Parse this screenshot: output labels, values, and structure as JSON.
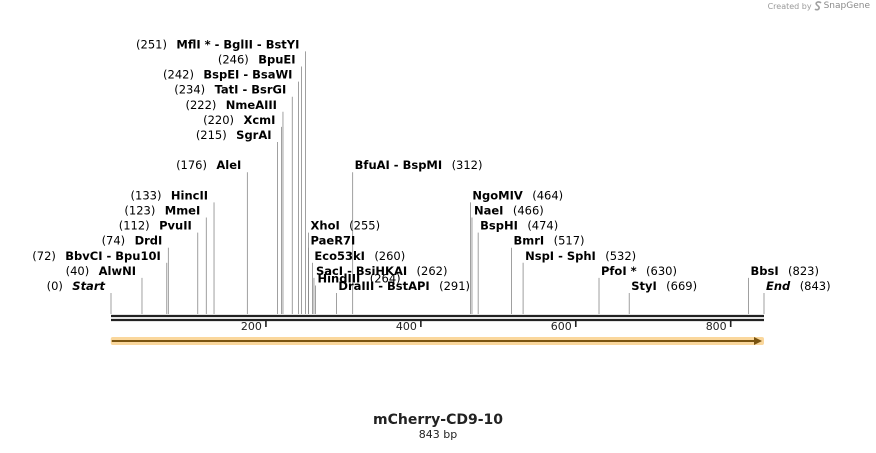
{
  "credit": {
    "prefix": "Created by",
    "brand": "SnapGene",
    "logo_icon": "snapgene-logo-icon"
  },
  "map": {
    "name": "mCherry-CD9-10",
    "length_label": "843 bp",
    "length": 843,
    "ruler_ticks": [
      200,
      400,
      600,
      800
    ],
    "feature_arrow": {
      "start": 1,
      "end": 843,
      "color": "#f5a623",
      "direction": "forward"
    },
    "labels": [
      {
        "id": "start",
        "pos": 0,
        "name": "Start",
        "num": "(0)",
        "style": "italic",
        "side": "left",
        "row": 0
      },
      {
        "id": "alwni",
        "pos": 40,
        "name": "AlwNI",
        "num": "(40)",
        "side": "left",
        "row": 1
      },
      {
        "id": "bbvci",
        "pos": 72,
        "name": "BbvCI - Bpu10I",
        "num": "(72)",
        "side": "left",
        "row": 2
      },
      {
        "id": "drdi",
        "pos": 74,
        "name": "DrdI",
        "num": "(74)",
        "side": "left",
        "row": 3
      },
      {
        "id": "pvuii",
        "pos": 112,
        "name": "PvuII",
        "num": "(112)",
        "side": "left",
        "row": 4
      },
      {
        "id": "mmei",
        "pos": 123,
        "name": "MmeI",
        "num": "(123)",
        "side": "left",
        "row": 5
      },
      {
        "id": "hincii",
        "pos": 133,
        "name": "HincII",
        "num": "(133)",
        "side": "left",
        "row": 6
      },
      {
        "id": "alei",
        "pos": 176,
        "name": "AleI",
        "num": "(176)",
        "side": "left",
        "row": 8
      },
      {
        "id": "sgrai",
        "pos": 215,
        "name": "SgrAI",
        "num": "(215)",
        "side": "left",
        "row": 10
      },
      {
        "id": "xcmi",
        "pos": 220,
        "name": "XcmI",
        "num": "(220)",
        "side": "left",
        "row": 11
      },
      {
        "id": "nmeaiii",
        "pos": 222,
        "name": "NmeAIII",
        "num": "(222)",
        "side": "left",
        "row": 12
      },
      {
        "id": "tati",
        "pos": 234,
        "name": "TatI - BsrGI",
        "num": "(234)",
        "side": "left",
        "row": 13
      },
      {
        "id": "bspei",
        "pos": 242,
        "name": "BspEI - BsaWI",
        "num": "(242)",
        "side": "left",
        "row": 14
      },
      {
        "id": "bpuei",
        "pos": 246,
        "name": "BpuEI",
        "num": "(246)",
        "side": "left",
        "row": 15
      },
      {
        "id": "mfli",
        "pos": 251,
        "name": "MflI * - BglII - BstYI",
        "num": "(251)",
        "side": "left",
        "row": 16
      },
      {
        "id": "xhoi",
        "pos": 255,
        "name": "XhoI",
        "num": "(255)",
        "side": "right",
        "row": 4
      },
      {
        "id": "paer7i",
        "pos": 255,
        "name": "PaeR7I",
        "num": "",
        "side": "right",
        "row": 3
      },
      {
        "id": "eco53ki",
        "pos": 260,
        "name": "Eco53kI",
        "num": "(260)",
        "side": "right",
        "row": 2
      },
      {
        "id": "saci",
        "pos": 262,
        "name": "SacI - BsiHKAI",
        "num": "(262)",
        "side": "right",
        "row": 1
      },
      {
        "id": "hindiii",
        "pos": 264,
        "name": "HindIII",
        "num": "(264)",
        "side": "right",
        "row": 0.5
      },
      {
        "id": "draiii",
        "pos": 291,
        "name": "DraIII - BstAPI",
        "num": "(291)",
        "side": "right",
        "row": 0
      },
      {
        "id": "bfuai",
        "pos": 312,
        "name": "BfuAI - BspMI",
        "num": "(312)",
        "side": "right",
        "row": 8
      },
      {
        "id": "ngomiv",
        "pos": 464,
        "name": "NgoMIV",
        "num": "(464)",
        "side": "right",
        "row": 6
      },
      {
        "id": "naei",
        "pos": 466,
        "name": "NaeI",
        "num": "(466)",
        "side": "right",
        "row": 5
      },
      {
        "id": "bsphi",
        "pos": 474,
        "name": "BspHI",
        "num": "(474)",
        "side": "right",
        "row": 4
      },
      {
        "id": "bmri",
        "pos": 517,
        "name": "BmrI",
        "num": "(517)",
        "side": "right",
        "row": 3
      },
      {
        "id": "nspi",
        "pos": 532,
        "name": "NspI - SphI",
        "num": "(532)",
        "side": "right",
        "row": 2
      },
      {
        "id": "pfoi",
        "pos": 630,
        "name": "PfoI *",
        "num": "(630)",
        "side": "right",
        "row": 1
      },
      {
        "id": "styi",
        "pos": 669,
        "name": "StyI",
        "num": "(669)",
        "side": "right",
        "row": 0
      },
      {
        "id": "bbsi",
        "pos": 823,
        "name": "BbsI",
        "num": "(823)",
        "side": "right",
        "row": 1
      },
      {
        "id": "end",
        "pos": 843,
        "name": "End",
        "num": "(843)",
        "style": "italic",
        "side": "right",
        "row": 0
      }
    ]
  }
}
